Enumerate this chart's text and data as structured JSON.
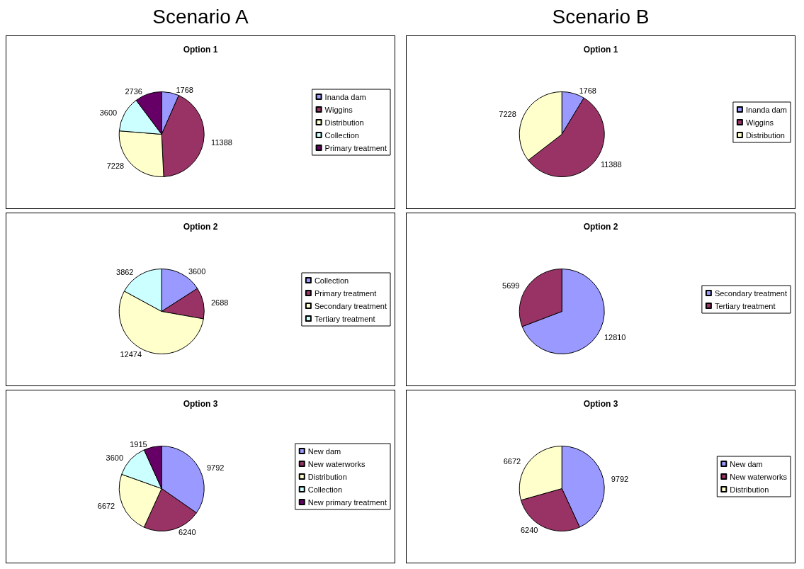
{
  "chart_data": [
    {
      "type": "pie",
      "title": "Option 1",
      "annotations": [
        "Scenario A"
      ],
      "categories": [
        "Inanda dam",
        "Wiggins",
        "Distribution",
        "Collection",
        "Primary treatment"
      ],
      "values": [
        1768,
        11388,
        7228,
        3600,
        2736
      ],
      "colors": [
        "#9999ff",
        "#993366",
        "#ffffcc",
        "#ccffff",
        "#660066"
      ],
      "data_labels": true,
      "legend": "right"
    },
    {
      "type": "pie",
      "title": "Option 1",
      "annotations": [
        "Scenario B"
      ],
      "categories": [
        "Inanda dam",
        "Wiggins",
        "Distribution"
      ],
      "values": [
        1768,
        11388,
        7228
      ],
      "colors": [
        "#9999ff",
        "#993366",
        "#ffffcc"
      ],
      "data_labels": true,
      "legend": "right"
    },
    {
      "type": "pie",
      "title": "Option 2",
      "categories": [
        "Collection",
        "Primary treatment",
        "Secondary treatment",
        "Tertiary treatment"
      ],
      "values": [
        3600,
        2688,
        12474,
        3862
      ],
      "colors": [
        "#9999ff",
        "#993366",
        "#ffffcc",
        "#ccffff"
      ],
      "data_labels": true,
      "legend": "right"
    },
    {
      "type": "pie",
      "title": "Option 2",
      "categories": [
        "Secondary treatment",
        "Tertiary treatment"
      ],
      "values": [
        12810,
        5699
      ],
      "colors": [
        "#9999ff",
        "#993366"
      ],
      "data_labels": true,
      "legend": "right"
    },
    {
      "type": "pie",
      "title": "Option 3",
      "categories": [
        "New dam",
        "New waterworks",
        "Distribution",
        "Collection",
        "New primary treatment"
      ],
      "values": [
        9792,
        6240,
        6672,
        3600,
        1915
      ],
      "colors": [
        "#9999ff",
        "#993366",
        "#ffffcc",
        "#ccffff",
        "#660066"
      ],
      "data_labels": true,
      "legend": "right"
    },
    {
      "type": "pie",
      "title": "Option 3",
      "categories": [
        "New dam",
        "New waterworks",
        "Distribution"
      ],
      "values": [
        9792,
        6240,
        6672
      ],
      "colors": [
        "#9999ff",
        "#993366",
        "#ffffcc"
      ],
      "data_labels": true,
      "legend": "right"
    }
  ]
}
